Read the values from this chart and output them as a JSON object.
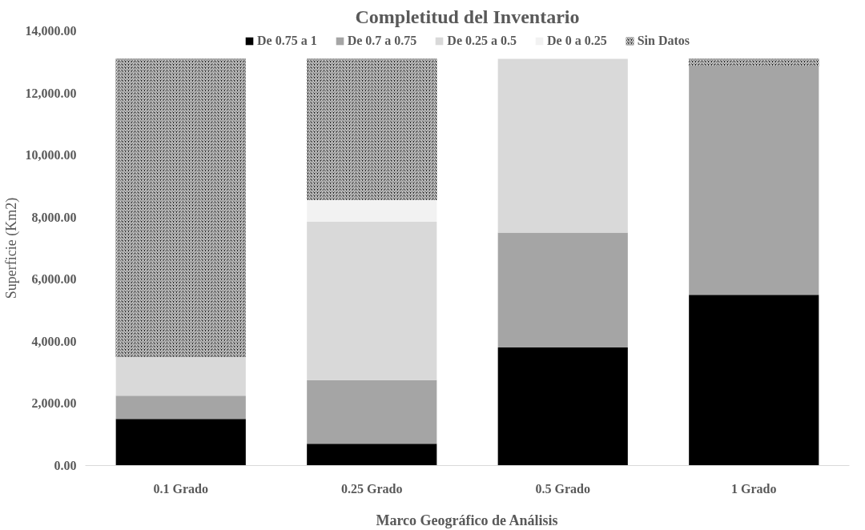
{
  "chart_data": {
    "type": "bar",
    "stacked": true,
    "title": "Completitud del Inventario",
    "xlabel": "Marco Geográfico de Análisis",
    "ylabel": "Superficie (Km2)",
    "categories": [
      "0.1 Grado",
      "0.25 Grado",
      "0.5 Grado",
      "1 Grado"
    ],
    "series": [
      {
        "name": "De 0.75 a 1",
        "color": "#000000",
        "values": [
          1500,
          700,
          3800,
          5500
        ]
      },
      {
        "name": "De 0.7 a 0.75",
        "color": "#a5a5a5",
        "values": [
          750,
          2050,
          3700,
          7350
        ]
      },
      {
        "name": "De 0.25 a 0.5",
        "color": "#d9d9d9",
        "values": [
          1250,
          5100,
          5600,
          0
        ]
      },
      {
        "name": "De 0 a 0.25",
        "color": "#f2f2f2",
        "values": [
          0,
          700,
          0,
          0
        ]
      },
      {
        "name": "Sin Datos",
        "color": "#000000",
        "values": [
          9600,
          4550,
          0,
          250
        ]
      }
    ],
    "ylim": [
      0,
      14000
    ],
    "yticks": [
      {
        "value": 0,
        "label": "0.00"
      },
      {
        "value": 2000,
        "label": "2,000.00"
      },
      {
        "value": 4000,
        "label": "4,000.00"
      },
      {
        "value": 6000,
        "label": "6,000.00"
      },
      {
        "value": 8000,
        "label": "8,000.00"
      },
      {
        "value": 10000,
        "label": "10,000.00"
      },
      {
        "value": 12000,
        "label": "12,000.00"
      },
      {
        "value": 14000,
        "label": "14,000.00"
      }
    ],
    "grid": false,
    "legend": "top"
  }
}
